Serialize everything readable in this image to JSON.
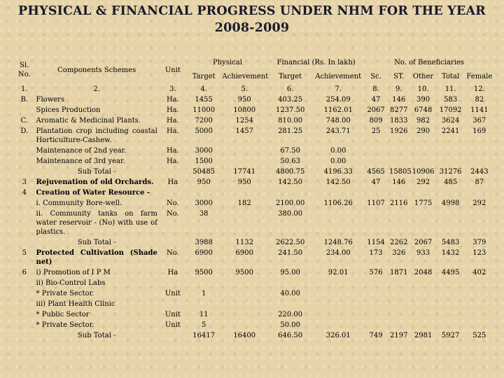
{
  "title": {
    "line1": "PHYSICAL & FINANCIAL PROGRESS UNDER NHM FOR THE YEAR",
    "line2": "2008-2009"
  },
  "headers": {
    "sl": "Sl. No.",
    "components": "Components Schemes",
    "unit": "Unit",
    "physical": "Physical",
    "financial": "Financial (Rs. In lakh)",
    "beneficiaries": "No. of Beneficiaries",
    "target": "Target",
    "achievement": "Achievement",
    "fin_target": "Target",
    "fin_achievement": "Achievement",
    "sc": "Sc.",
    "st": "ST.",
    "other": "Other",
    "total": "Total",
    "female": "Female"
  },
  "rows": [
    {
      "sl": "1.",
      "comp": "2.",
      "unit": "3.",
      "pt": "4.",
      "pa": "5.",
      "ft": "6.",
      "fa": "7.",
      "sc": "8.",
      "st": "9.",
      "oth": "10.",
      "tot": "11.",
      "fem": "12."
    },
    {
      "sl": "B.",
      "comp": "Flowers",
      "unit": "Ha.",
      "pt": "1455",
      "pa": "950",
      "ft": "403.25",
      "fa": "254.09",
      "sc": "47",
      "st": "146",
      "oth": "390",
      "tot": "583",
      "fem": "82"
    },
    {
      "sl": "",
      "comp": "Spices Production",
      "unit": "Ha.",
      "pt": "11000",
      "pa": "10800",
      "ft": "1237.50",
      "fa": "1162.01",
      "sc": "2067",
      "st": "8277",
      "oth": "6748",
      "tot": "17092",
      "fem": "1141"
    },
    {
      "sl": "C.",
      "comp": "Aromatic & Medicinal Plants.",
      "unit": "Ha.",
      "pt": "7200",
      "pa": "1254",
      "ft": "810.00",
      "fa": "748.00",
      "sc": "809",
      "st": "1833",
      "oth": "982",
      "tot": "3624",
      "fem": "367"
    },
    {
      "sl": "D.",
      "comp": "Plantation crop including coastal Horticulture-Cashew.",
      "unit": "Ha.",
      "pt": "5000",
      "pa": "1457",
      "ft": "281.25",
      "fa": "243.71",
      "sc": "25",
      "st": "1926",
      "oth": "290",
      "tot": "2241",
      "fem": "169"
    },
    {
      "sl": "",
      "comp": "Maintenance of 2nd year.",
      "unit": "Ha.",
      "pt": "3000",
      "pa": "",
      "ft": "67.50",
      "fa": "0.00",
      "sc": "",
      "st": "",
      "oth": "",
      "tot": "",
      "fem": ""
    },
    {
      "sl": "",
      "comp": "Maintenance of 3rd year.",
      "unit": "Ha.",
      "pt": "1500",
      "pa": "",
      "ft": "50.63",
      "fa": "0.00",
      "sc": "",
      "st": "",
      "oth": "",
      "tot": "",
      "fem": ""
    },
    {
      "sl": "",
      "comp": "Sub Total -",
      "unit": "",
      "pt": "50485",
      "pa": "17741",
      "ft": "4800.75",
      "fa": "4196.33",
      "sc": "4565",
      "st": "15805",
      "oth": "10906",
      "tot": "31276",
      "fem": "2443"
    },
    {
      "sl": "3",
      "comp": "Rejuvenation of old Orchards.",
      "unit": "Ha",
      "pt": "950",
      "pa": "950",
      "ft": "142.50",
      "fa": "142.50",
      "sc": "47",
      "st": "146",
      "oth": "292",
      "tot": "485",
      "fem": "87"
    },
    {
      "sl": "4",
      "comp": "Creation of Water Resource -",
      "unit": "",
      "pt": "",
      "pa": "",
      "ft": "",
      "fa": "",
      "sc": "",
      "st": "",
      "oth": "",
      "tot": "",
      "fem": ""
    },
    {
      "sl": "",
      "comp": "i. Community Bore-well.",
      "unit": "No.",
      "pt": "3000",
      "pa": "182",
      "ft": "2100.00",
      "fa": "1106.26",
      "sc": "1107",
      "st": "2116",
      "oth": "1775",
      "tot": "4998",
      "fem": "292"
    },
    {
      "sl": "",
      "comp": "ii. Community tanks on farm water reservoir - (No) with use of plastics.",
      "unit": "No.",
      "pt": "38",
      "pa": "",
      "ft": "380.00",
      "fa": "",
      "sc": "",
      "st": "",
      "oth": "",
      "tot": "",
      "fem": ""
    },
    {
      "sl": "",
      "comp": "Sub Total -",
      "unit": "",
      "pt": "3988",
      "pa": "1132",
      "ft": "2622.50",
      "fa": "1248.76",
      "sc": "1154",
      "st": "2262",
      "oth": "2067",
      "tot": "5483",
      "fem": "379"
    },
    {
      "sl": "5",
      "comp": "Protected Cultivation (Shade net)",
      "unit": "No.",
      "pt": "6900",
      "pa": "6900",
      "ft": "241.50",
      "fa": "234.00",
      "sc": "173",
      "st": "326",
      "oth": "933",
      "tot": "1432",
      "fem": "123"
    },
    {
      "sl": "6",
      "comp": "i) Promotion of I P M",
      "unit": "Ha",
      "pt": "9500",
      "pa": "9500",
      "ft": "95.00",
      "fa": "92.01",
      "sc": "576",
      "st": "1871",
      "oth": "2048",
      "tot": "4495",
      "fem": "402"
    },
    {
      "sl": "",
      "comp": "ii) Bio-Control Labs",
      "unit": "",
      "pt": "",
      "pa": "",
      "ft": "",
      "fa": "",
      "sc": "",
      "st": "",
      "oth": "",
      "tot": "",
      "fem": ""
    },
    {
      "sl": "",
      "comp": "* Private Sector.",
      "unit": "Unit",
      "pt": "1",
      "pa": "",
      "ft": "40.00",
      "fa": "",
      "sc": "",
      "st": "",
      "oth": "",
      "tot": "",
      "fem": ""
    },
    {
      "sl": "",
      "comp": "iii) Plant Health Clinic",
      "unit": "",
      "pt": "",
      "pa": "",
      "ft": "",
      "fa": "",
      "sc": "",
      "st": "",
      "oth": "",
      "tot": "",
      "fem": ""
    },
    {
      "sl": "",
      "comp": "* Public Sector",
      "unit": "Unit",
      "pt": "11",
      "pa": "",
      "ft": "220.00",
      "fa": "",
      "sc": "",
      "st": "",
      "oth": "",
      "tot": "",
      "fem": ""
    },
    {
      "sl": "",
      "comp": "* Private Sector.",
      "unit": "Unit",
      "pt": "5",
      "pa": "",
      "ft": "50.00",
      "fa": "",
      "sc": "",
      "st": "",
      "oth": "",
      "tot": "",
      "fem": ""
    },
    {
      "sl": "",
      "comp": "Sub Total -",
      "unit": "",
      "pt": "16417",
      "pa": "16400",
      "ft": "646.50",
      "fa": "326.01",
      "sc": "749",
      "st": "2197",
      "oth": "2981",
      "tot": "5927",
      "fem": "525"
    }
  ]
}
